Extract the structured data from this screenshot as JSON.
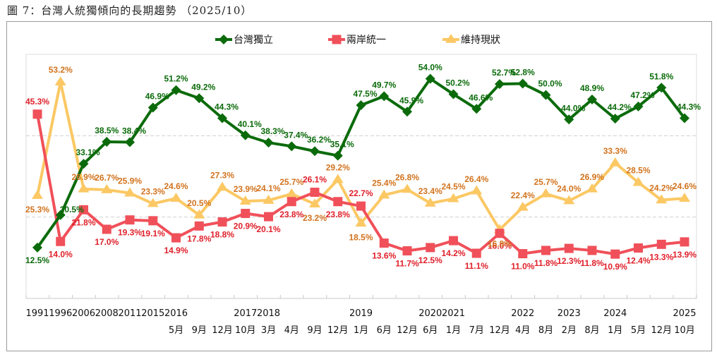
{
  "figure_title": "圖 7：台灣人統獨傾向的長期趨勢 （2025/10）",
  "chart_data": {
    "type": "line",
    "title": "台灣人統獨傾向的長期趨勢 (2025/10)",
    "xlabel": "",
    "ylabel": "",
    "ylim": [
      0,
      60
    ],
    "gridlines": [
      20,
      40
    ],
    "grid": true,
    "legend_position": "top-center",
    "x_year_labels": [
      "1991",
      "1996",
      "2006",
      "2008",
      "2011",
      "2015",
      "2016",
      "",
      "",
      "2017",
      "2018",
      "",
      "",
      "",
      "2019",
      "",
      "",
      "2020",
      "2021",
      "",
      "",
      "2022",
      "",
      "2023",
      "",
      "2024",
      "",
      "",
      "2025",
      ""
    ],
    "x_month_labels": [
      "",
      "",
      "",
      "",
      "",
      "",
      "5月",
      "9月",
      "12月",
      "10月",
      "3月",
      "4月",
      "9月",
      "12月",
      "1月",
      "6月",
      "12月",
      "6月",
      "1月",
      "7月",
      "12月",
      "4月",
      "8月",
      "2月",
      "8月",
      "1月",
      "5月",
      "12月",
      "10月",
      ""
    ],
    "series": [
      {
        "name": "台灣獨立",
        "color": "#0b6b0b",
        "label_color": "#0b6b0b",
        "marker": "diamond",
        "values": [
          12.5,
          20.5,
          33.1,
          38.5,
          38.4,
          46.9,
          51.2,
          49.2,
          44.3,
          40.1,
          38.3,
          37.4,
          36.2,
          35.1,
          47.5,
          49.7,
          45.9,
          54.0,
          50.2,
          46.6,
          52.7,
          52.8,
          50.0,
          44.0,
          48.9,
          44.2,
          47.2,
          51.8,
          44.3
        ]
      },
      {
        "name": "兩岸統一",
        "color": "#f0505a",
        "label_color": "#e0202a",
        "marker": "square",
        "values": [
          45.3,
          14.0,
          21.8,
          17.0,
          19.3,
          19.1,
          14.9,
          17.8,
          18.8,
          20.9,
          20.1,
          23.8,
          26.1,
          23.8,
          22.7,
          13.6,
          11.7,
          12.5,
          14.2,
          11.1,
          16.0,
          11.0,
          11.8,
          12.3,
          11.8,
          10.9,
          12.4,
          13.3,
          13.9
        ]
      },
      {
        "name": "維持現狀",
        "color": "#fbc864",
        "label_color": "#d2731e",
        "marker": "triangle",
        "values": [
          25.3,
          53.2,
          26.9,
          26.7,
          25.9,
          23.3,
          24.6,
          20.5,
          27.3,
          23.9,
          24.1,
          25.7,
          23.2,
          29.2,
          18.5,
          25.4,
          26.8,
          23.4,
          24.5,
          26.4,
          16.9,
          22.4,
          25.7,
          24.0,
          26.9,
          33.3,
          28.5,
          24.2,
          24.6
        ]
      }
    ]
  }
}
